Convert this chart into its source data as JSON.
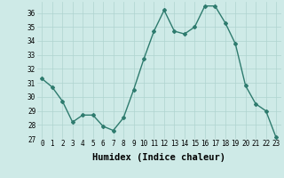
{
  "x": [
    0,
    1,
    2,
    3,
    4,
    5,
    6,
    7,
    8,
    9,
    10,
    11,
    12,
    13,
    14,
    15,
    16,
    17,
    18,
    19,
    20,
    21,
    22,
    23
  ],
  "y": [
    31.3,
    30.7,
    29.7,
    28.2,
    28.7,
    28.7,
    27.9,
    27.6,
    28.5,
    30.5,
    32.7,
    34.7,
    36.2,
    34.7,
    34.5,
    35.0,
    36.5,
    36.5,
    35.3,
    33.8,
    30.8,
    29.5,
    29.0,
    27.1
  ],
  "line_color": "#2e7b6e",
  "marker": "D",
  "marker_size": 2.0,
  "bg_color": "#ceeae7",
  "grid_color": "#afd4d0",
  "xlabel": "Humidex (Indice chaleur)",
  "ylim": [
    27,
    36.8
  ],
  "xlim": [
    -0.5,
    23.5
  ],
  "yticks": [
    27,
    28,
    29,
    30,
    31,
    32,
    33,
    34,
    35,
    36
  ],
  "xticks": [
    0,
    1,
    2,
    3,
    4,
    5,
    6,
    7,
    8,
    9,
    10,
    11,
    12,
    13,
    14,
    15,
    16,
    17,
    18,
    19,
    20,
    21,
    22,
    23
  ],
  "tick_fontsize": 5.5,
  "label_fontsize": 7.5,
  "line_width": 1.0
}
